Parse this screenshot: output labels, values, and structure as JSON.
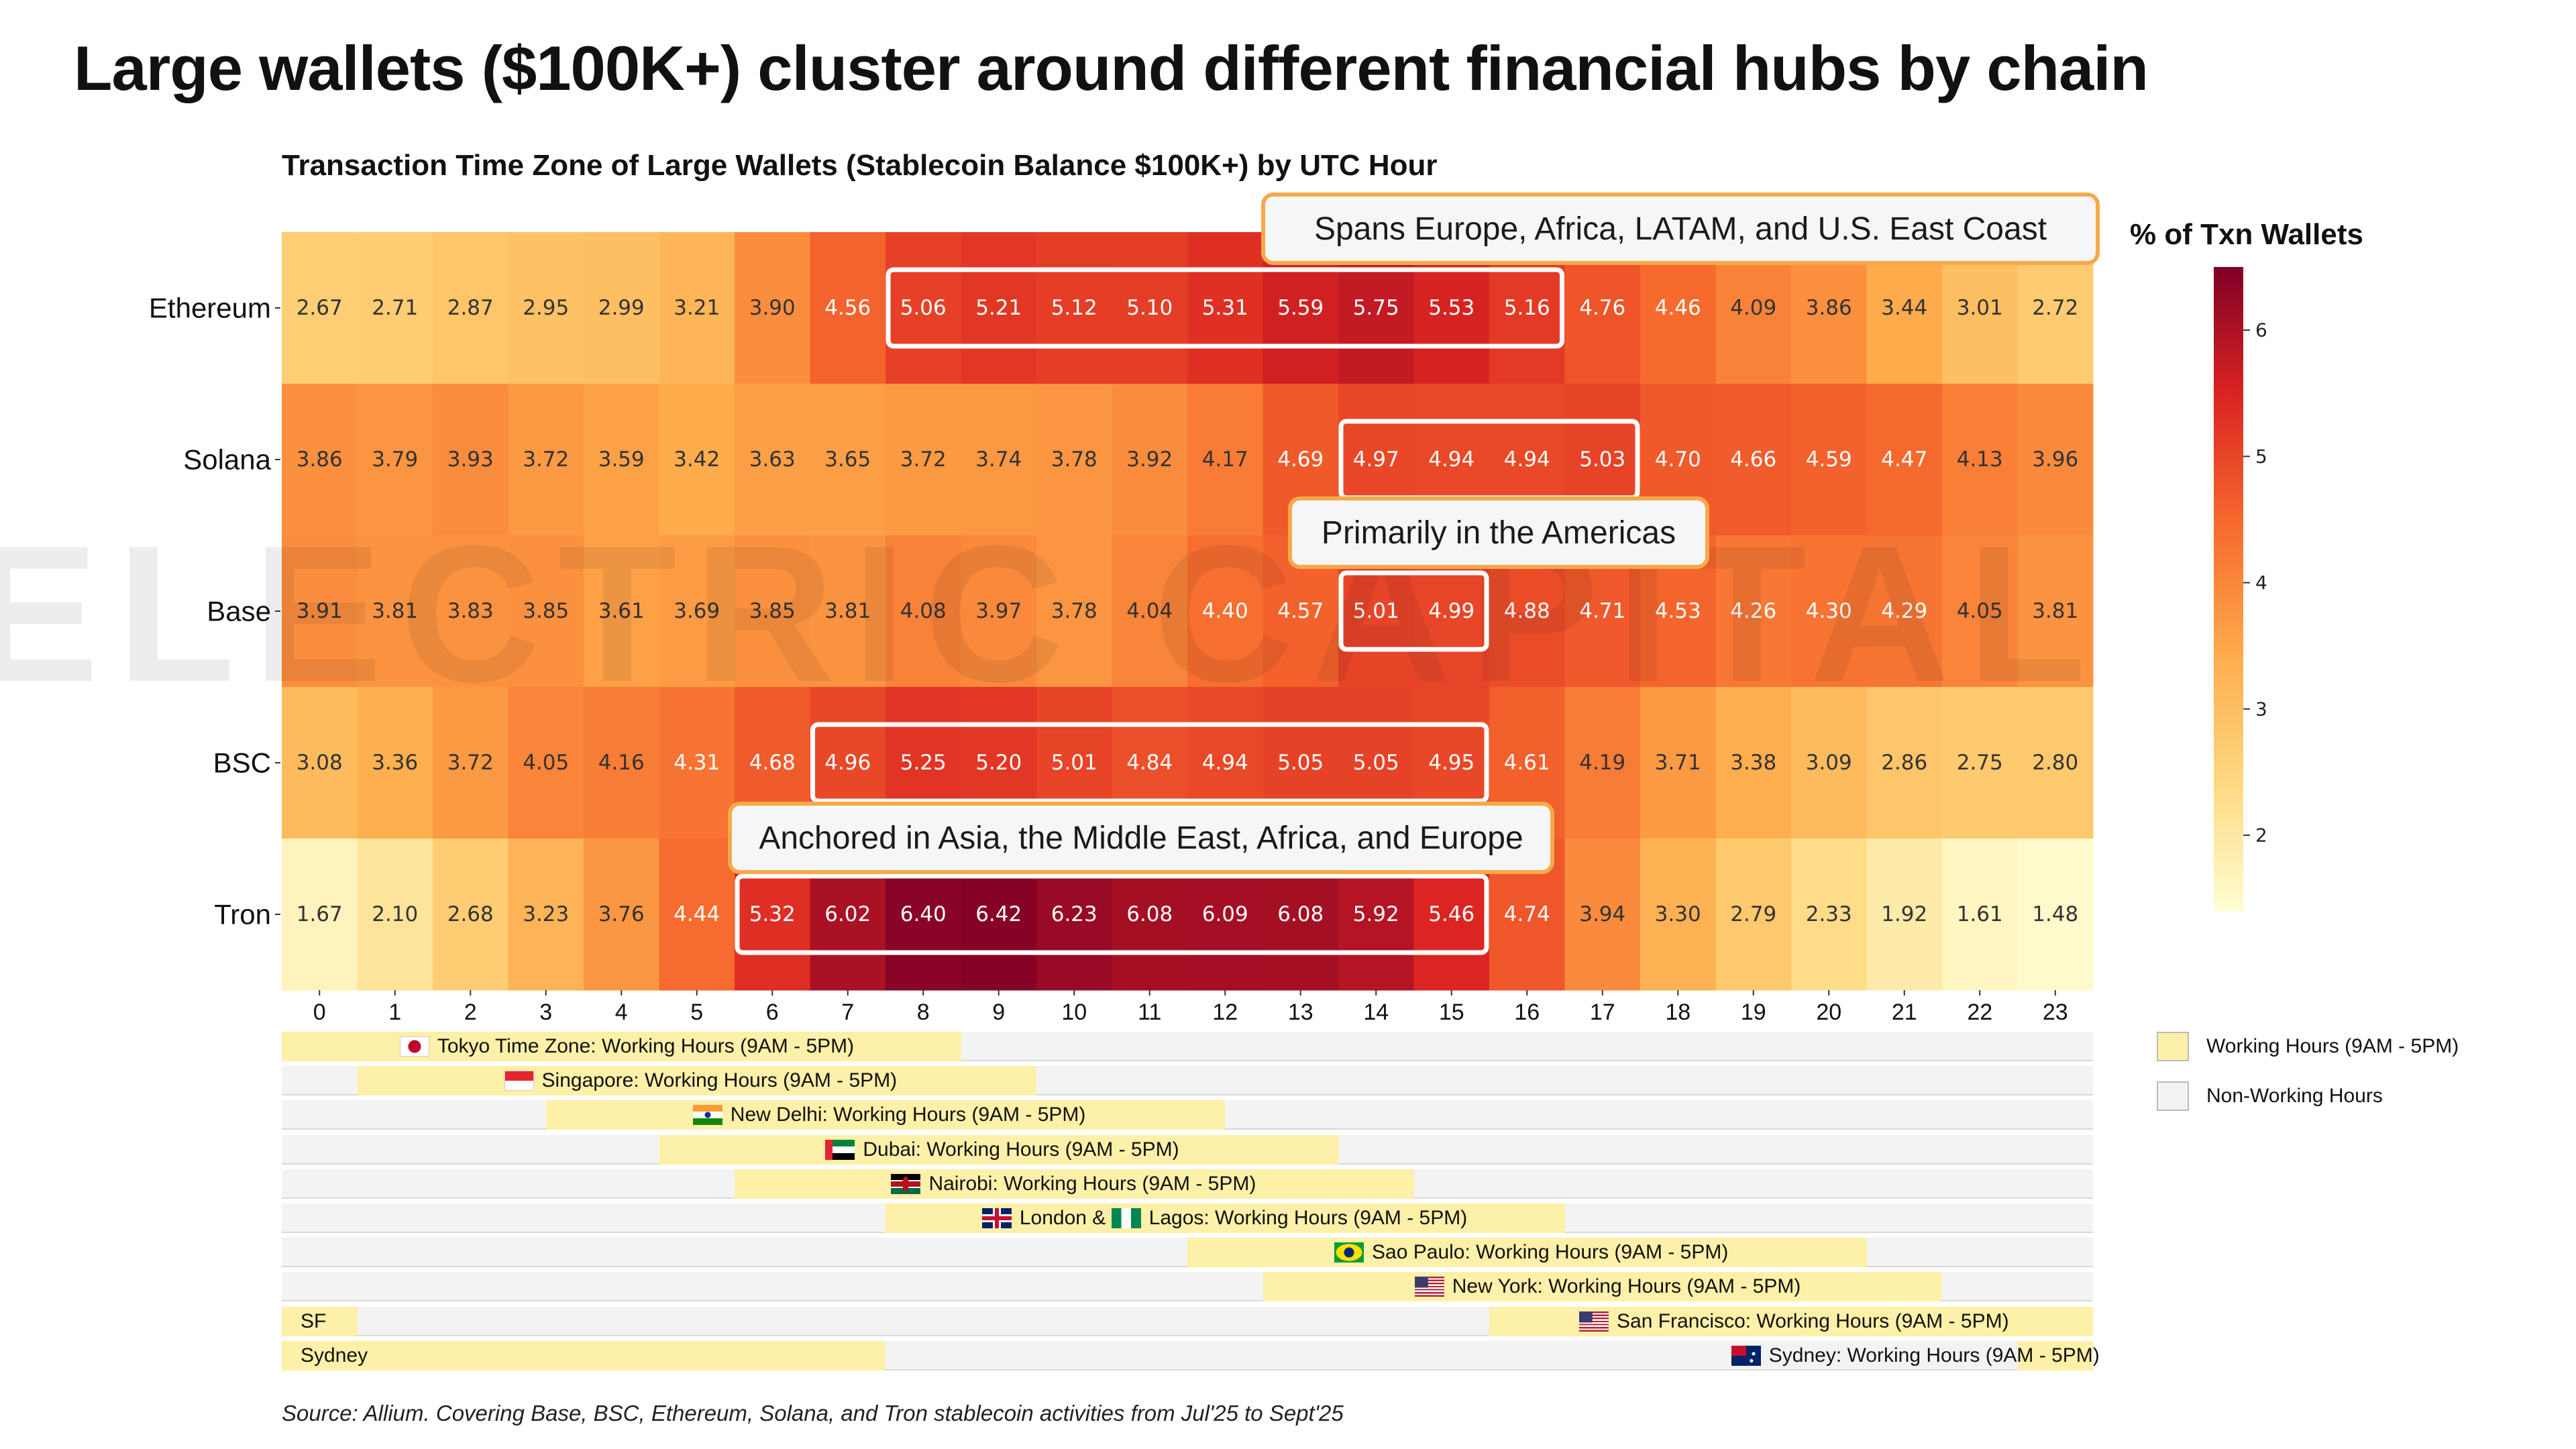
{
  "title": "Large wallets ($100K+) cluster around different financial hubs by chain",
  "watermark": "ELECTRIC CAPITAL",
  "source": "Source: Allium. Covering Base, BSC, Ethereum, Solana, and Tron stablecoin activities from Jul'25 to Sept'25",
  "chart_data": {
    "type": "heatmap",
    "title": "Transaction Time Zone of Large Wallets (Stablecoin Balance $100K+) by UTC Hour",
    "colorbar_label": "% of Txn Wallets",
    "colorbar_ticks": [
      2,
      3,
      4,
      5,
      6
    ],
    "color_range": [
      1.4,
      6.5
    ],
    "x": [
      0,
      1,
      2,
      3,
      4,
      5,
      6,
      7,
      8,
      9,
      10,
      11,
      12,
      13,
      14,
      15,
      16,
      17,
      18,
      19,
      20,
      21,
      22,
      23
    ],
    "y": [
      "Ethereum",
      "Solana",
      "Base",
      "BSC",
      "Tron"
    ],
    "values": [
      [
        2.67,
        2.71,
        2.87,
        2.95,
        2.99,
        3.21,
        3.9,
        4.56,
        5.06,
        5.21,
        5.12,
        5.1,
        5.31,
        5.59,
        5.75,
        5.53,
        5.16,
        4.76,
        4.46,
        4.09,
        3.86,
        3.44,
        3.01,
        2.72
      ],
      [
        3.86,
        3.79,
        3.93,
        3.72,
        3.59,
        3.42,
        3.63,
        3.65,
        3.72,
        3.74,
        3.78,
        3.92,
        4.17,
        4.69,
        4.97,
        4.94,
        4.94,
        5.03,
        4.7,
        4.66,
        4.59,
        4.47,
        4.13,
        3.96
      ],
      [
        3.91,
        3.81,
        3.83,
        3.85,
        3.61,
        3.69,
        3.85,
        3.81,
        4.08,
        3.97,
        3.78,
        4.04,
        4.4,
        4.57,
        5.01,
        4.99,
        4.88,
        4.71,
        4.53,
        4.26,
        4.3,
        4.29,
        4.05,
        3.81
      ],
      [
        3.08,
        3.36,
        3.72,
        4.05,
        4.16,
        4.31,
        4.68,
        4.96,
        5.25,
        5.2,
        5.01,
        4.84,
        4.94,
        5.05,
        5.05,
        4.95,
        4.61,
        4.19,
        3.71,
        3.38,
        3.09,
        2.86,
        2.75,
        2.8
      ],
      [
        1.67,
        2.1,
        2.68,
        3.23,
        3.76,
        4.44,
        5.32,
        6.02,
        6.4,
        6.42,
        6.23,
        6.08,
        6.09,
        6.08,
        5.92,
        5.46,
        4.74,
        3.94,
        3.3,
        2.79,
        2.33,
        1.92,
        1.61,
        1.48
      ]
    ],
    "highlights": [
      {
        "row": 0,
        "from": 8,
        "to": 16,
        "label": "Spans Europe, Africa, LATAM, and U.S. East Coast"
      },
      {
        "row": 1,
        "from": 14,
        "to": 17,
        "label": ""
      },
      {
        "row": 2,
        "from": 14,
        "to": 15,
        "label": "Primarily in the Americas"
      },
      {
        "row": 3,
        "from": 7,
        "to": 15,
        "label": ""
      },
      {
        "row": 4,
        "from": 6,
        "to": 15,
        "label": "Anchored in Asia, the Middle East, Africa, and Europe"
      }
    ]
  },
  "timezones": {
    "legend": {
      "working": "Working Hours (9AM - 5PM)",
      "nonworking": "Non-Working Hours",
      "working_color": "#fdf0a8",
      "nonworking_color": "#f3f3f3"
    },
    "rows": [
      {
        "label": "Tokyo Time Zone: Working Hours (9AM - 5PM)",
        "start": 0,
        "end": 9,
        "flag": "japan"
      },
      {
        "label": "Singapore: Working Hours (9AM - 5PM)",
        "start": 1,
        "end": 10,
        "flag": "singapore"
      },
      {
        "label": "New Delhi: Working Hours (9AM - 5PM)",
        "start": 3.5,
        "end": 12.5,
        "flag": "india"
      },
      {
        "label": "Dubai: Working Hours (9AM - 5PM)",
        "start": 5,
        "end": 14,
        "flag": "uae"
      },
      {
        "label": "Nairobi: Working Hours (9AM - 5PM)",
        "start": 6,
        "end": 15,
        "flag": "kenya"
      },
      {
        "label": "London &",
        "label2": "Lagos: Working Hours (9AM - 5PM)",
        "start": 8,
        "end": 17,
        "flag": "uk",
        "flag2": "nigeria"
      },
      {
        "label": "Sao Paulo: Working Hours (9AM - 5PM)",
        "start": 12,
        "end": 21,
        "flag": "brazil"
      },
      {
        "label": "New York: Working Hours (9AM - 5PM)",
        "start": 13,
        "end": 22,
        "flag": "usa"
      },
      {
        "label": "San Francisco: Working Hours (9AM - 5PM)",
        "start": 16,
        "end": 25,
        "flag": "usa",
        "wrap_label": "SF"
      },
      {
        "label": "Sydney: Working Hours (9AM - 5PM)",
        "start": 23,
        "end": 32,
        "flag": "australia",
        "wrap_label": "Sydney"
      }
    ]
  }
}
